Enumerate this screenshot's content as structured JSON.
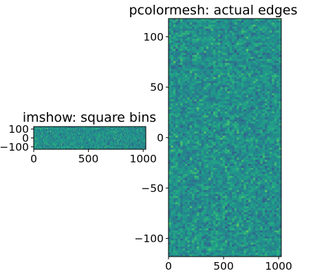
{
  "chart_data": [
    {
      "type": "heatmap",
      "title": "imshow: square bins",
      "colormap": "viridis",
      "xlim": [
        0,
        1024
      ],
      "ylim": [
        -128,
        128
      ],
      "xticks": [
        {
          "v": 0,
          "label": "0"
        },
        {
          "v": 500,
          "label": "500"
        },
        {
          "v": 1000,
          "label": "1000"
        }
      ],
      "yticks": [
        {
          "v": 100,
          "label": "100"
        },
        {
          "v": 0,
          "label": "0"
        },
        {
          "v": -100,
          "label": "−100"
        }
      ],
      "value_range": [
        0,
        1
      ],
      "bins": {
        "nx": 128,
        "ny": 16
      }
    },
    {
      "type": "heatmap",
      "title": "pcolormesh: actual edges",
      "colormap": "viridis",
      "xlim": [
        0,
        1024
      ],
      "ylim": [
        -118,
        118
      ],
      "xticks": [
        {
          "v": 0,
          "label": "0"
        },
        {
          "v": 500,
          "label": "500"
        },
        {
          "v": 1000,
          "label": "1000"
        }
      ],
      "yticks": [
        {
          "v": 100,
          "label": "100"
        },
        {
          "v": 50,
          "label": "50"
        },
        {
          "v": 0,
          "label": "0"
        },
        {
          "v": -50,
          "label": "−50"
        },
        {
          "v": -100,
          "label": "−100"
        }
      ],
      "value_range": [
        0,
        1
      ],
      "bins": {
        "nx": 48,
        "ny": 118
      }
    }
  ]
}
